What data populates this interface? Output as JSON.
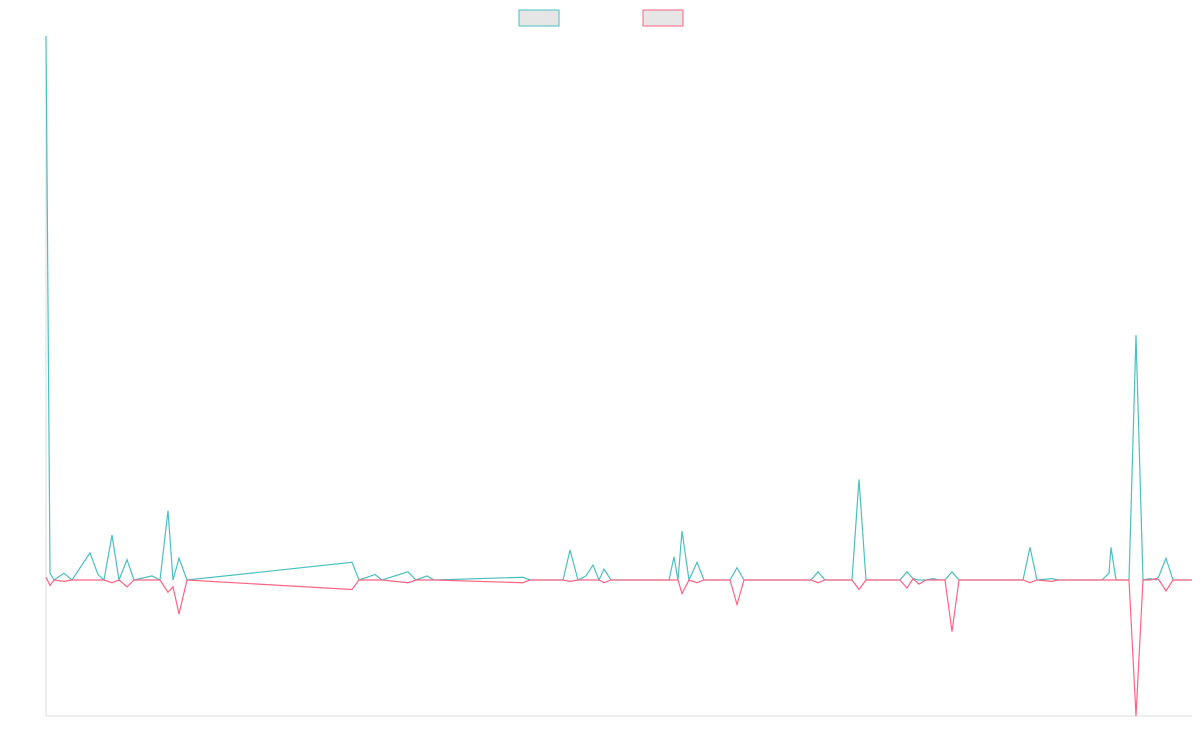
{
  "chart_data": {
    "type": "line",
    "x": [
      0,
      4,
      8,
      18,
      26,
      44,
      52,
      58,
      66,
      73,
      81,
      88,
      106,
      114,
      122,
      127,
      133,
      141,
      306,
      313,
      329,
      336,
      362,
      370,
      381,
      388,
      477,
      484,
      517,
      524,
      532,
      540,
      547,
      553,
      558,
      565,
      623,
      628,
      632,
      636,
      643,
      651,
      658,
      684,
      691,
      698,
      765,
      772,
      779,
      806,
      813,
      820,
      854,
      861,
      867,
      873,
      880,
      887,
      893,
      899,
      906,
      913,
      977,
      984,
      991,
      1006,
      1012,
      1056,
      1063,
      1065,
      1070,
      1083,
      1090,
      1097,
      1104,
      1110,
      1113,
      1120,
      1127,
      1146
    ],
    "series": [
      {
        "color": "#4bc0c0",
        "values": [
          400,
          5,
          0,
          5,
          0,
          20,
          4,
          0,
          33,
          0,
          15,
          0,
          3,
          0,
          51,
          0,
          16,
          0,
          13,
          0,
          4,
          0,
          6,
          0,
          3,
          0,
          2,
          0,
          0,
          22,
          0,
          3,
          11,
          0,
          8,
          0,
          0,
          17,
          0,
          36,
          0,
          13,
          0,
          0,
          9,
          0,
          0,
          6,
          0,
          0,
          74,
          0,
          0,
          6,
          1,
          0,
          0,
          1,
          0,
          0,
          6,
          0,
          0,
          24,
          0,
          1,
          0,
          0,
          5,
          24,
          0,
          0,
          180,
          0,
          1,
          0,
          3,
          16,
          0,
          0
        ]
      },
      {
        "color": "#ff6384",
        "values": [
          2,
          -4,
          0,
          -1,
          0,
          0,
          0,
          0,
          -2,
          0,
          -5,
          0,
          0,
          0,
          -9,
          -5,
          -25,
          0,
          -7,
          0,
          0,
          0,
          -2,
          0,
          0,
          0,
          -2,
          0,
          0,
          -1,
          0,
          0,
          0,
          0,
          -2,
          0,
          0,
          0,
          0,
          -10,
          0,
          -2,
          0,
          0,
          -18,
          0,
          0,
          -2,
          0,
          0,
          -7,
          0,
          0,
          -6,
          1,
          -3,
          0,
          0,
          0,
          0,
          -38,
          0,
          0,
          -2,
          0,
          -1,
          0,
          0,
          0,
          0,
          0,
          0,
          -100,
          0,
          0,
          1,
          0,
          -8,
          0,
          0
        ]
      }
    ],
    "xlim": [
      0,
      1146
    ],
    "ylim": [
      -100,
      400
    ],
    "grid": false
  }
}
